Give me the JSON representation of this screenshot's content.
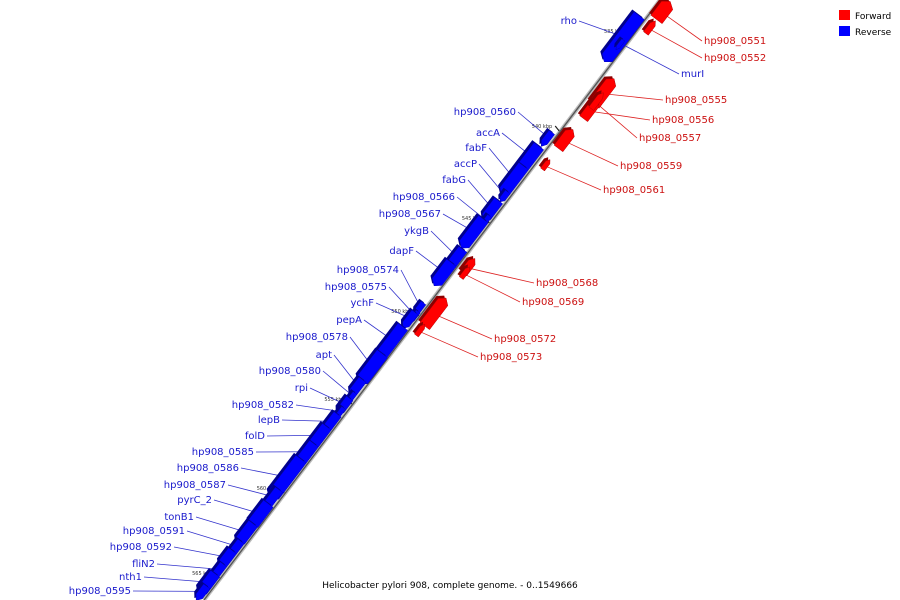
{
  "title": "Helicobacter pylori 908, complete genome. - 0..1549666",
  "legend": [
    {
      "label": "Forward",
      "color": "#ff0000"
    },
    {
      "label": "Reverse",
      "color": "#0000ff"
    }
  ],
  "colors": {
    "forward": "#ff0000",
    "reverse": "#0000ff",
    "reverse_label": "#1a1acc",
    "forward_label": "#cc1111",
    "leader": "#3333cc",
    "leader_fwd": "#dd2222"
  },
  "ticks": [
    {
      "label": "535 kbp",
      "kbp": 535
    },
    {
      "label": "540 kbp",
      "kbp": 540
    },
    {
      "label": "545 kbp",
      "kbp": 545
    },
    {
      "label": "550 kbp",
      "kbp": 550
    },
    {
      "label": "555 kbp",
      "kbp": 555
    },
    {
      "label": "560 kbp",
      "kbp": 560
    },
    {
      "label": "565 kbp",
      "kbp": 565
    }
  ],
  "genes": [
    {
      "name": "rho",
      "strand": "reverse"
    },
    {
      "name": "hp908_0551",
      "strand": "forward"
    },
    {
      "name": "hp908_0552",
      "strand": "forward"
    },
    {
      "name": "murI",
      "strand": "reverse"
    },
    {
      "name": "hp908_0555",
      "strand": "forward"
    },
    {
      "name": "hp908_0556",
      "strand": "forward"
    },
    {
      "name": "hp908_0557",
      "strand": "forward"
    },
    {
      "name": "hp908_0559",
      "strand": "forward"
    },
    {
      "name": "hp908_0561",
      "strand": "forward"
    },
    {
      "name": "hp908_0560",
      "strand": "reverse"
    },
    {
      "name": "accA",
      "strand": "reverse"
    },
    {
      "name": "fabF",
      "strand": "reverse"
    },
    {
      "name": "accP",
      "strand": "reverse"
    },
    {
      "name": "fabG",
      "strand": "reverse"
    },
    {
      "name": "hp908_0566",
      "strand": "reverse"
    },
    {
      "name": "hp908_0567",
      "strand": "reverse"
    },
    {
      "name": "ykgB",
      "strand": "reverse"
    },
    {
      "name": "dapF",
      "strand": "reverse"
    },
    {
      "name": "hp908_0568",
      "strand": "forward"
    },
    {
      "name": "hp908_0569",
      "strand": "forward"
    },
    {
      "name": "hp908_0574",
      "strand": "reverse"
    },
    {
      "name": "hp908_0575",
      "strand": "reverse"
    },
    {
      "name": "ychF",
      "strand": "reverse"
    },
    {
      "name": "pepA",
      "strand": "reverse"
    },
    {
      "name": "hp908_0572",
      "strand": "forward"
    },
    {
      "name": "hp908_0573",
      "strand": "forward"
    },
    {
      "name": "hp908_0578",
      "strand": "reverse"
    },
    {
      "name": "apt",
      "strand": "reverse"
    },
    {
      "name": "hp908_0580",
      "strand": "reverse"
    },
    {
      "name": "rpi",
      "strand": "reverse"
    },
    {
      "name": "hp908_0582",
      "strand": "reverse"
    },
    {
      "name": "lepB",
      "strand": "reverse"
    },
    {
      "name": "folD",
      "strand": "reverse"
    },
    {
      "name": "hp908_0585",
      "strand": "reverse"
    },
    {
      "name": "hp908_0586",
      "strand": "reverse"
    },
    {
      "name": "hp908_0587",
      "strand": "reverse"
    },
    {
      "name": "pyrC_2",
      "strand": "reverse"
    },
    {
      "name": "tonB1",
      "strand": "reverse"
    },
    {
      "name": "hp908_0591",
      "strand": "reverse"
    },
    {
      "name": "hp908_0592",
      "strand": "reverse"
    },
    {
      "name": "fliN2",
      "strand": "reverse"
    },
    {
      "name": "nth1",
      "strand": "reverse"
    },
    {
      "name": "hp908_0595",
      "strand": "reverse"
    }
  ]
}
